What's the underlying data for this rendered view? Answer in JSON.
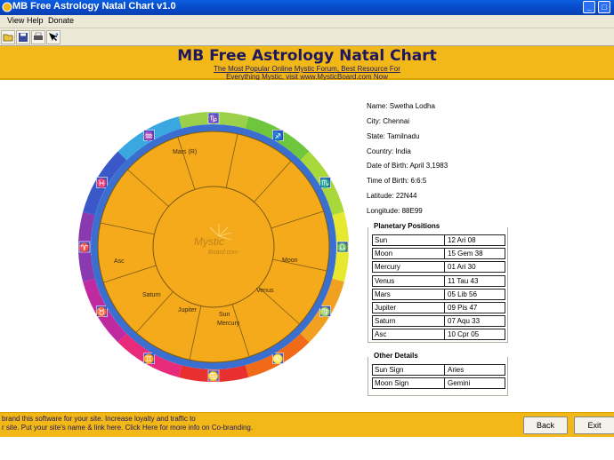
{
  "window": {
    "title": "MB Free Astrology Natal Chart v1.0",
    "minimize_glyph": "_",
    "maximize_glyph": "□"
  },
  "menu": [
    "View",
    "Help",
    "Donate"
  ],
  "toolbar": {
    "icons": [
      "open-folder-icon",
      "save-icon",
      "print-icon",
      "help-icon"
    ]
  },
  "header": {
    "title": "MB Free Astrology Natal Chart",
    "subtitle_line1": "The Most Popular Online Mystic Forum, Best Resource For",
    "subtitle_line2": "Everything Mystic, visit www.MysticBoard.com Now"
  },
  "chart": {
    "center_logo_line1": "Mystic",
    "center_logo_line2": "Board.com",
    "house_labels": {
      "mars": "Mars (R)",
      "asc": "Asc",
      "saturn": "Saturn",
      "jupiter": "Jupiter",
      "sun": "Sun",
      "mercury": "Mercury",
      "venus": "Venus",
      "moon": "Moon"
    },
    "zodiac_ring": [
      {
        "glyph": "♑",
        "color": "#9ad04a"
      },
      {
        "glyph": "♐",
        "color": "#6ec63c"
      },
      {
        "glyph": "♏",
        "color": "#a8d83a"
      },
      {
        "glyph": "♎",
        "color": "#e8e830"
      },
      {
        "glyph": "♍",
        "color": "#f2a020"
      },
      {
        "glyph": "♌",
        "color": "#f06a18"
      },
      {
        "glyph": "♋",
        "color": "#e83030"
      },
      {
        "glyph": "♊",
        "color": "#e82a7a"
      },
      {
        "glyph": "♉",
        "color": "#c02aa0"
      },
      {
        "glyph": "♈",
        "color": "#8a3ab0"
      },
      {
        "glyph": "♓",
        "color": "#3a58c8"
      },
      {
        "glyph": "♒",
        "color": "#3aa8e0"
      }
    ]
  },
  "details": {
    "name": "Name: Swetha Lodha",
    "city": "City: Chennai",
    "state": "State: Tamilnadu",
    "country": "Country: India",
    "dob": "Date of Birth: April 3,1983",
    "tob": "Time of Birth: 6:6:5",
    "latitude": "Latitude: 22N44",
    "longitude": "Longitude: 88E99"
  },
  "planetary": {
    "title": "Planetary Positions",
    "rows": [
      {
        "name": "Sun",
        "value": "12 Ari 08"
      },
      {
        "name": "Moon",
        "value": "15 Gem 38"
      },
      {
        "name": "Mercury",
        "value": "01 Ari 30"
      },
      {
        "name": "Venus",
        "value": "11 Tau 43"
      },
      {
        "name": "Mars",
        "value": "05 Lib 56"
      },
      {
        "name": "Jupiter",
        "value": "09 Pis 47"
      },
      {
        "name": "Saturn",
        "value": "07 Aqu 33"
      },
      {
        "name": "Asc",
        "value": "10 Cpr 05"
      }
    ]
  },
  "other": {
    "title": "Other Details",
    "rows": [
      {
        "name": "Sun Sign",
        "value": "Aries"
      },
      {
        "name": "Moon Sign",
        "value": "Gemini"
      }
    ]
  },
  "footer": {
    "line1": "brand this software for your site. Increase loyalty and traffic to",
    "line2": "r site. Put your site's name & link here. Click Here for more info on Co-branding.",
    "back": "Back",
    "exit": "Exit"
  },
  "colors": {
    "banner": "#f2b818",
    "chart_fill": "#f5aa1c",
    "ring_blue": "#3a6fd0",
    "text_navy": "#1e1660"
  }
}
